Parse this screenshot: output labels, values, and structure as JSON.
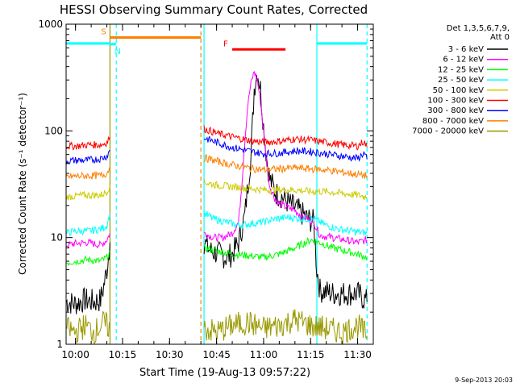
{
  "chart_data": {
    "type": "line",
    "title": "HESSI Observing Summary Count Rates, Corrected",
    "xlabel": "Start Time (19-Aug-13 09:57:22)",
    "ylabel": "Corrected Count Rate (s⁻¹ detector⁻¹)",
    "xlim": [
      "09:57",
      "11:35"
    ],
    "ylim": [
      1,
      1000
    ],
    "yscale": "log",
    "xticks": [
      "10:00",
      "10:15",
      "10:30",
      "10:45",
      "11:00",
      "11:15",
      "11:30"
    ],
    "yticks": [
      "1",
      "10",
      "100",
      "1000"
    ],
    "legend_header": [
      "Det 1,3,5,6,7,9,",
      "Att 0"
    ],
    "legend_position": "right",
    "footer_date": "9-Sep-2013 20:03",
    "flags": [
      {
        "label": "S",
        "color": "#ff7f00",
        "start": "10:11",
        "end": "10:40",
        "level": 750
      },
      {
        "label": "N",
        "color": "#00ffff",
        "start": "10:11",
        "end": "10:13",
        "level": 650
      },
      {
        "label": "F",
        "color": "#ff0000",
        "start": "10:50",
        "end": "11:07",
        "level": 580
      }
    ],
    "night_bars": [
      {
        "color": "#00ffff",
        "start": "09:57",
        "end": "10:11",
        "level": 660
      },
      {
        "color": "#00ffff",
        "start": "11:17",
        "end": "11:33",
        "level": 660
      }
    ],
    "vertical_markers": [
      {
        "time": "10:11",
        "color": "#999900",
        "style": "solid"
      },
      {
        "time": "10:13",
        "color": "#00ffff",
        "style": "dashed"
      },
      {
        "time": "10:40",
        "color": "#ff7f00",
        "style": "dashed"
      },
      {
        "time": "10:41",
        "color": "#00ffff",
        "style": "solid"
      },
      {
        "time": "11:17",
        "color": "#00ffff",
        "style": "solid"
      },
      {
        "time": "11:33",
        "color": "#00ffff",
        "style": "dashed"
      }
    ],
    "series": [
      {
        "name": "3 - 6 keV",
        "color": "#000000",
        "segments": [
          {
            "x": [
              "09:57",
              "10:00",
              "10:03",
              "10:06",
              "10:08",
              "10:09",
              "10:10",
              "10:11"
            ],
            "y": [
              2.5,
              2.4,
              2.6,
              2.5,
              2.6,
              3.5,
              5,
              9
            ]
          },
          {
            "x": [
              "10:41",
              "10:43",
              "10:46",
              "10:48",
              "10:50",
              "10:52",
              "10:54",
              "10:56",
              "10:57",
              "10:58",
              "10:59",
              "11:00",
              "11:01",
              "11:02",
              "11:04",
              "11:06",
              "11:08",
              "11:10",
              "11:12",
              "11:14",
              "11:16",
              "11:17",
              "11:18",
              "11:22",
              "11:26",
              "11:30",
              "11:33"
            ],
            "y": [
              9,
              7.5,
              7,
              6.5,
              7,
              9,
              16,
              60,
              250,
              370,
              250,
              110,
              55,
              35,
              26,
              24,
              21,
              19,
              17,
              15,
              14,
              5,
              3.2,
              3,
              3,
              3,
              2.5
            ]
          }
        ]
      },
      {
        "name": "6 - 12 keV",
        "color": "#ff00ff",
        "segments": [
          {
            "x": [
              "09:57",
              "10:00",
              "10:04",
              "10:08",
              "10:10",
              "10:11"
            ],
            "y": [
              8.5,
              8.8,
              9,
              8.5,
              9.5,
              11
            ]
          },
          {
            "x": [
              "10:41",
              "10:44",
              "10:47",
              "10:50",
              "10:52",
              "10:53",
              "10:54",
              "10:55",
              "10:56",
              "10:57",
              "10:58",
              "10:59",
              "11:00",
              "11:01",
              "11:02",
              "11:04",
              "11:06",
              "11:08",
              "11:10",
              "11:12",
              "11:14",
              "11:16",
              "11:18",
              "11:22",
              "11:26",
              "11:30",
              "11:33"
            ],
            "y": [
              11,
              10,
              10,
              11,
              14,
              30,
              80,
              180,
              280,
              360,
              300,
              190,
              100,
              50,
              30,
              22,
              20,
              19,
              18,
              16,
              15,
              14,
              10.5,
              10,
              9.5,
              9,
              9.5
            ]
          }
        ]
      },
      {
        "name": "12 - 25 keV",
        "color": "#00ff00",
        "segments": [
          {
            "x": [
              "09:57",
              "10:00",
              "10:04",
              "10:08",
              "10:10",
              "10:11"
            ],
            "y": [
              5.8,
              6,
              6.2,
              6,
              6.5,
              7.5
            ]
          },
          {
            "x": [
              "10:41",
              "10:45",
              "10:50",
              "10:55",
              "11:00",
              "11:05",
              "11:10",
              "11:15",
              "11:18",
              "11:22",
              "11:26",
              "11:30",
              "11:33"
            ],
            "y": [
              8,
              7.5,
              7,
              6.8,
              6.5,
              7,
              8,
              9.5,
              9,
              8,
              7.5,
              7,
              6.5
            ]
          }
        ]
      },
      {
        "name": "25 - 50 keV",
        "color": "#00ffff",
        "segments": [
          {
            "x": [
              "09:57",
              "10:00",
              "10:04",
              "10:08",
              "10:10",
              "10:11"
            ],
            "y": [
              11,
              11.5,
              11.5,
              12,
              13,
              17
            ]
          },
          {
            "x": [
              "10:41",
              "10:44",
              "10:48",
              "10:52",
              "10:56",
              "11:00",
              "11:04",
              "11:08",
              "11:12",
              "11:16",
              "11:20",
              "11:24",
              "11:28",
              "11:33"
            ],
            "y": [
              17,
              15,
              14,
              13,
              13.5,
              14,
              15,
              15.5,
              15,
              15,
              13,
              12,
              11.5,
              11
            ]
          }
        ]
      },
      {
        "name": "50 - 100 keV",
        "color": "#cccc00",
        "segments": [
          {
            "x": [
              "09:57",
              "10:00",
              "10:04",
              "10:08",
              "10:10",
              "10:11"
            ],
            "y": [
              24,
              24.5,
              25,
              25,
              27,
              31
            ]
          },
          {
            "x": [
              "10:41",
              "10:45",
              "10:50",
              "10:55",
              "11:00",
              "11:05",
              "11:10",
              "11:15",
              "11:20",
              "11:25",
              "11:30",
              "11:33"
            ],
            "y": [
              33,
              31,
              30,
              29,
              28,
              28,
              28,
              27,
              27,
              26,
              25,
              24
            ]
          }
        ]
      },
      {
        "name": "100 - 300 keV",
        "color": "#ff0000",
        "segments": [
          {
            "x": [
              "09:57",
              "10:00",
              "10:04",
              "10:08",
              "10:10",
              "10:11"
            ],
            "y": [
              72,
              72,
              74,
              74,
              78,
              88
            ]
          },
          {
            "x": [
              "10:41",
              "10:45",
              "10:50",
              "10:55",
              "11:00",
              "11:05",
              "11:10",
              "11:15",
              "11:20",
              "11:25",
              "11:30",
              "11:32",
              "11:33"
            ],
            "y": [
              105,
              95,
              88,
              82,
              78,
              80,
              84,
              82,
              78,
              74,
              72,
              80,
              70
            ]
          }
        ]
      },
      {
        "name": "300 - 800 keV",
        "color": "#0000ff",
        "segments": [
          {
            "x": [
              "09:57",
              "10:00",
              "10:04",
              "10:08",
              "10:10",
              "10:11"
            ],
            "y": [
              52,
              53,
              53,
              55,
              58,
              66
            ]
          },
          {
            "x": [
              "10:41",
              "10:45",
              "10:50",
              "10:55",
              "11:00",
              "11:05",
              "11:10",
              "11:15",
              "11:20",
              "11:25",
              "11:30",
              "11:32",
              "11:33"
            ],
            "y": [
              86,
              78,
              70,
              65,
              61,
              62,
              65,
              64,
              61,
              58,
              55,
              62,
              54
            ]
          }
        ]
      },
      {
        "name": "800 - 7000 keV",
        "color": "#ff7f00",
        "segments": [
          {
            "x": [
              "09:57",
              "10:00",
              "10:04",
              "10:08",
              "10:10",
              "10:11"
            ],
            "y": [
              37,
              37.5,
              38,
              38,
              40,
              46
            ]
          },
          {
            "x": [
              "10:41",
              "10:45",
              "10:50",
              "10:55",
              "11:00",
              "11:05",
              "11:10",
              "11:15",
              "11:20",
              "11:25",
              "11:30",
              "11:33"
            ],
            "y": [
              56,
              52,
              48,
              45,
              43,
              44,
              45,
              44,
              43,
              41,
              39,
              38
            ]
          }
        ]
      },
      {
        "name": "7000 - 20000 keV",
        "color": "#999900",
        "segments": [
          {
            "x": [
              "09:57",
              "10:00",
              "10:03",
              "10:06",
              "10:09",
              "10:11"
            ],
            "y": [
              1.4,
              1.3,
              1.5,
              1.3,
              1.6,
              1.4
            ]
          },
          {
            "x": [
              "10:41",
              "10:45",
              "10:50",
              "10:55",
              "11:00",
              "11:05",
              "11:10",
              "11:15",
              "11:20",
              "11:25",
              "11:30",
              "11:33"
            ],
            "y": [
              1.4,
              1.3,
              1.5,
              1.6,
              1.4,
              1.5,
              1.7,
              1.5,
              1.4,
              1.3,
              1.5,
              1.2
            ]
          }
        ]
      }
    ]
  }
}
